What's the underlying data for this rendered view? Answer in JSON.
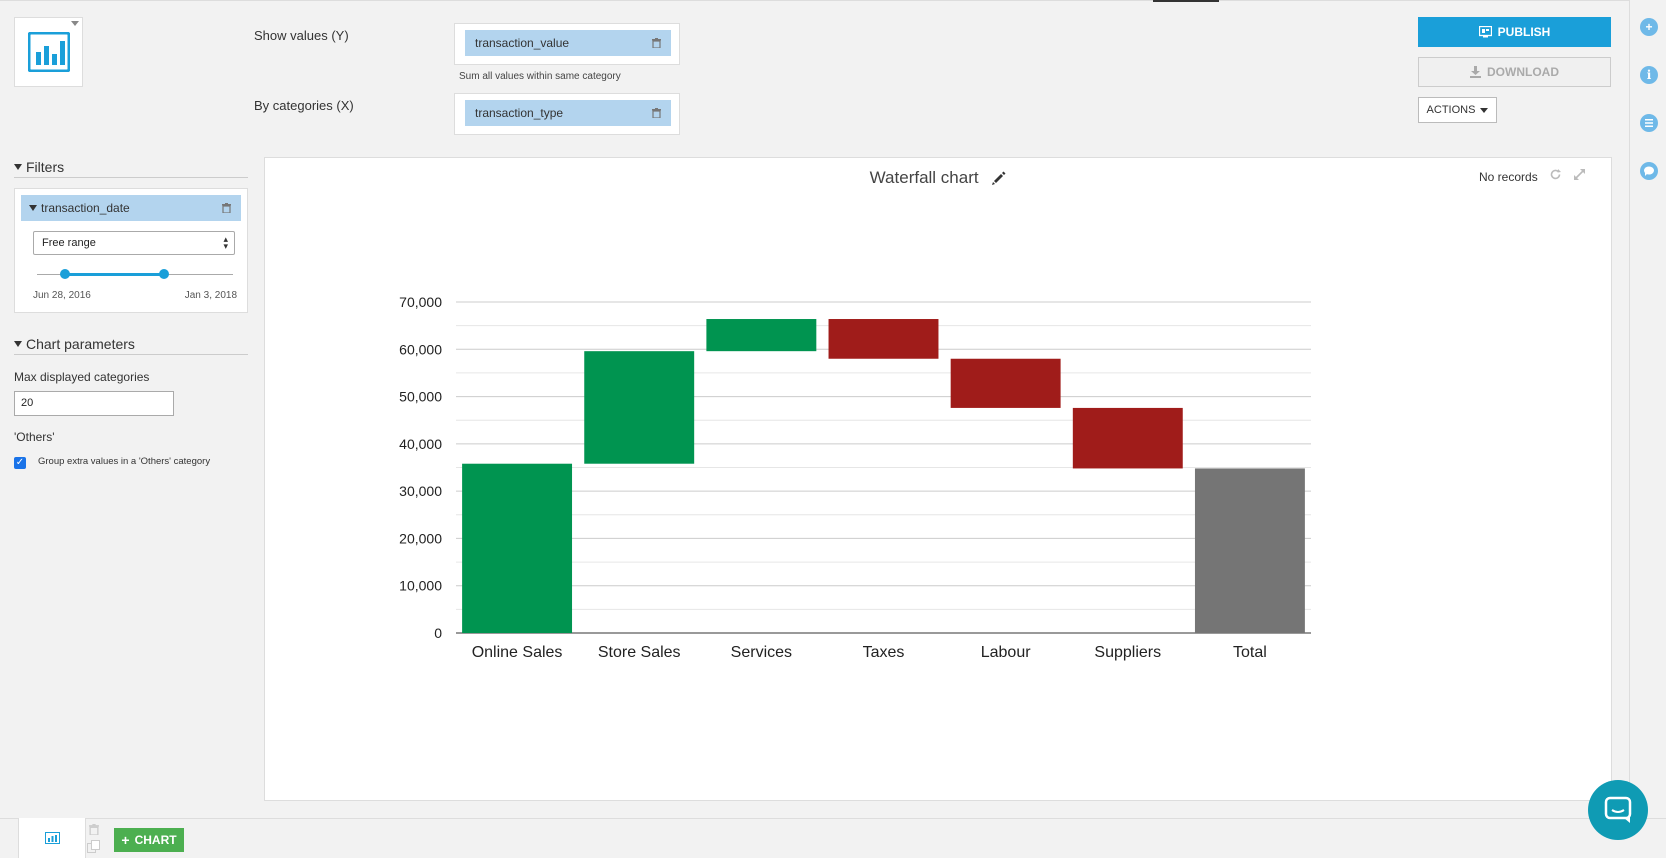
{
  "config": {
    "show_values_label": "Show values (Y)",
    "y_field": "transaction_value",
    "y_hint": "Sum all values within same category",
    "by_categories_label": "By categories (X)",
    "x_field": "transaction_type"
  },
  "toolbar": {
    "publish_label": "PUBLISH",
    "download_label": "DOWNLOAD",
    "actions_label": "ACTIONS"
  },
  "filters": {
    "title": "Filters",
    "field": "transaction_date",
    "mode": "Free range",
    "range_start": "Jun 28, 2016",
    "range_end": "Jan 3, 2018"
  },
  "params": {
    "title": "Chart parameters",
    "max_label": "Max displayed categories",
    "max_value": "20",
    "others_label": "'Others'",
    "group_label": "Group extra values in a 'Others' category",
    "group_checked": true
  },
  "chart_header": {
    "title": "Waterfall chart",
    "records": "No records"
  },
  "chart_data": {
    "type": "bar",
    "subtype": "waterfall",
    "title": "Waterfall chart",
    "categories": [
      "Online Sales",
      "Store Sales",
      "Services",
      "Taxes",
      "Labour",
      "Suppliers",
      "Total"
    ],
    "deltas": [
      35800,
      23800,
      6800,
      -8400,
      -10400,
      -12800,
      34800
    ],
    "bars": [
      {
        "category": "Online Sales",
        "start": 0,
        "end": 35800,
        "kind": "increase"
      },
      {
        "category": "Store Sales",
        "start": 35800,
        "end": 59600,
        "kind": "increase"
      },
      {
        "category": "Services",
        "start": 59600,
        "end": 66400,
        "kind": "increase"
      },
      {
        "category": "Taxes",
        "start": 66400,
        "end": 58000,
        "kind": "decrease"
      },
      {
        "category": "Labour",
        "start": 58000,
        "end": 47600,
        "kind": "decrease"
      },
      {
        "category": "Suppliers",
        "start": 47600,
        "end": 34800,
        "kind": "decrease"
      },
      {
        "category": "Total",
        "start": 0,
        "end": 34800,
        "kind": "total"
      }
    ],
    "yticks": [
      0,
      10000,
      20000,
      30000,
      40000,
      50000,
      60000,
      70000
    ],
    "ytick_labels": [
      "0",
      "10,000",
      "20,000",
      "30,000",
      "40,000",
      "50,000",
      "60,000",
      "70,000"
    ],
    "ylim": [
      0,
      70000
    ],
    "grid": true,
    "colors": {
      "increase": "#009450",
      "decrease": "#a01c1a",
      "total": "#757575"
    }
  },
  "colors": {
    "accent": "#1a9fd9",
    "pill": "#b3d4ee",
    "add_chart": "#4caf50"
  },
  "bottom": {
    "add_chart_label": "CHART"
  }
}
